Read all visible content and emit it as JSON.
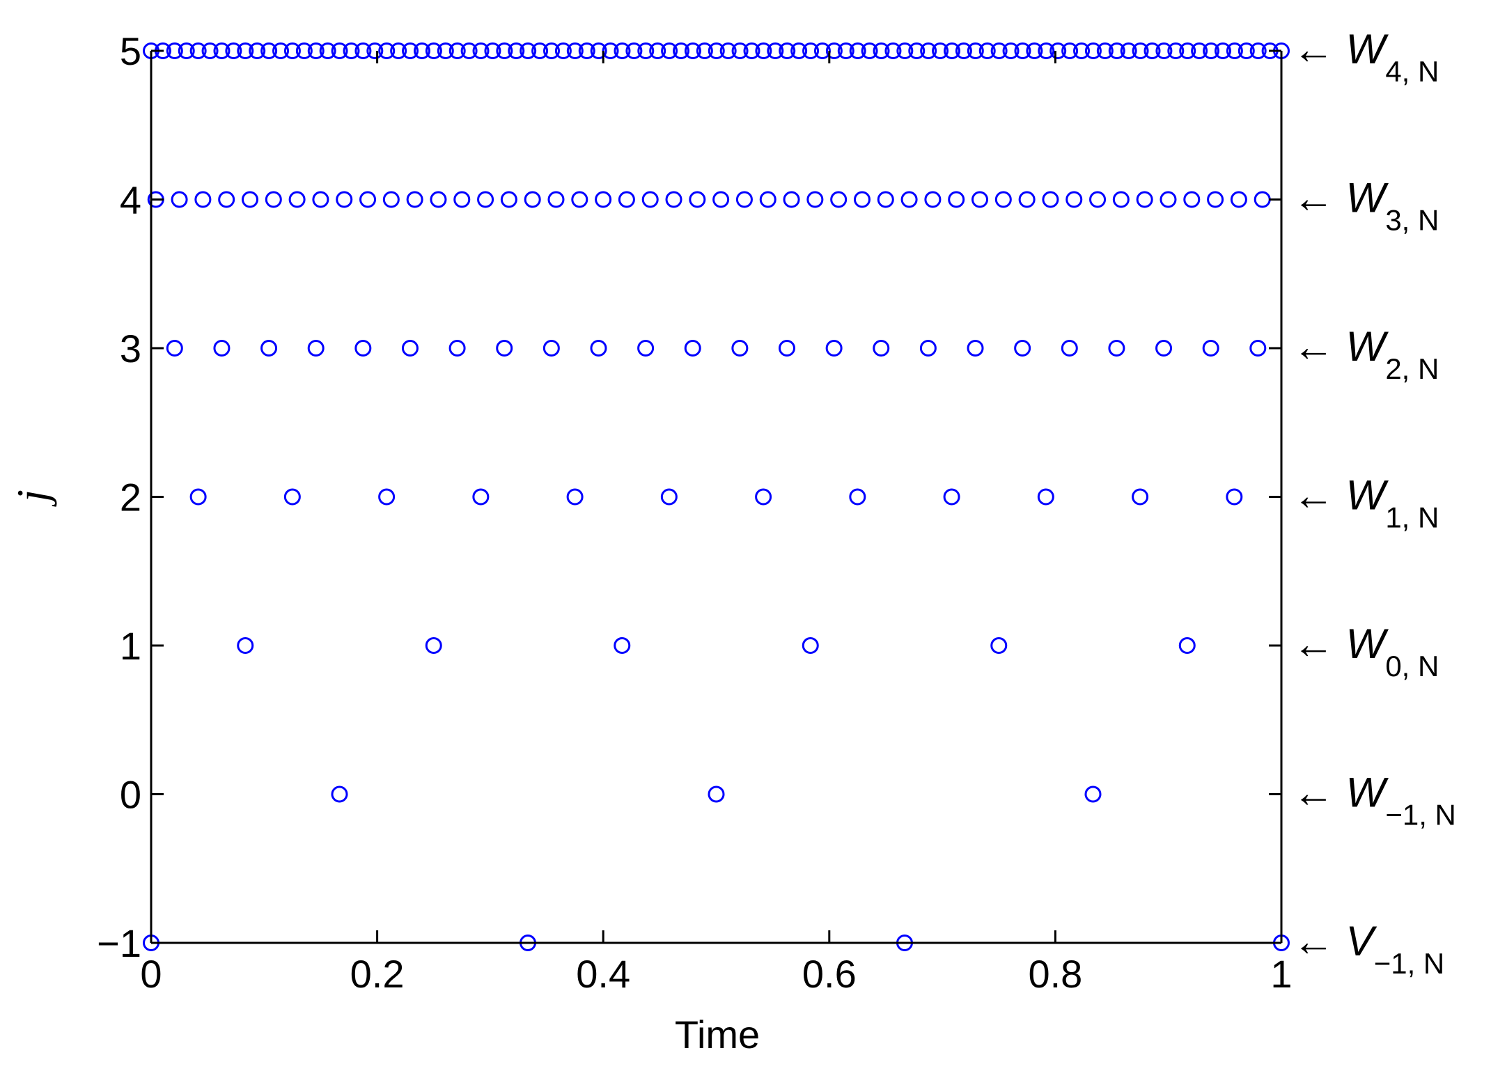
{
  "chart_data": {
    "type": "scatter",
    "title": "",
    "xlabel": "Time",
    "ylabel": "j",
    "xlim": [
      0,
      1
    ],
    "ylim": [
      -1,
      5
    ],
    "xticks": [
      0,
      0.2,
      0.4,
      0.6,
      0.8,
      1
    ],
    "xtick_labels": [
      "0",
      "0.2",
      "0.4",
      "0.6",
      "0.8",
      "1"
    ],
    "yticks": [
      -1,
      0,
      1,
      2,
      3,
      4,
      5
    ],
    "ytick_labels": [
      "−1",
      "0",
      "1",
      "2",
      "3",
      "4",
      "5"
    ],
    "grid": false,
    "marker": "open-circle",
    "marker_color": "#0000ff",
    "axis_color": "#000000",
    "rows": [
      {
        "j": -1,
        "label_symbol": "V",
        "label_subscript": "−1, N",
        "first": 0,
        "step": 0.33333,
        "count": 4
      },
      {
        "j": 0,
        "label_symbol": "W",
        "label_subscript": "−1, N",
        "first": 0.16667,
        "step": 0.33333,
        "count": 3
      },
      {
        "j": 1,
        "label_symbol": "W",
        "label_subscript": "0, N",
        "first": 0.08333,
        "step": 0.16667,
        "count": 6
      },
      {
        "j": 2,
        "label_symbol": "W",
        "label_subscript": "1, N",
        "first": 0.04167,
        "step": 0.08333,
        "count": 12
      },
      {
        "j": 3,
        "label_symbol": "W",
        "label_subscript": "2, N",
        "first": 0.02083,
        "step": 0.04167,
        "count": 24
      },
      {
        "j": 4,
        "label_symbol": "W",
        "label_subscript": "3, N",
        "first": 0.00417,
        "step": 0.02083,
        "count": 48
      },
      {
        "j": 5,
        "label_symbol": "W",
        "label_subscript": "4, N",
        "first": 0,
        "step": 0.01042,
        "count": 97
      }
    ],
    "side_arrow": "←"
  }
}
